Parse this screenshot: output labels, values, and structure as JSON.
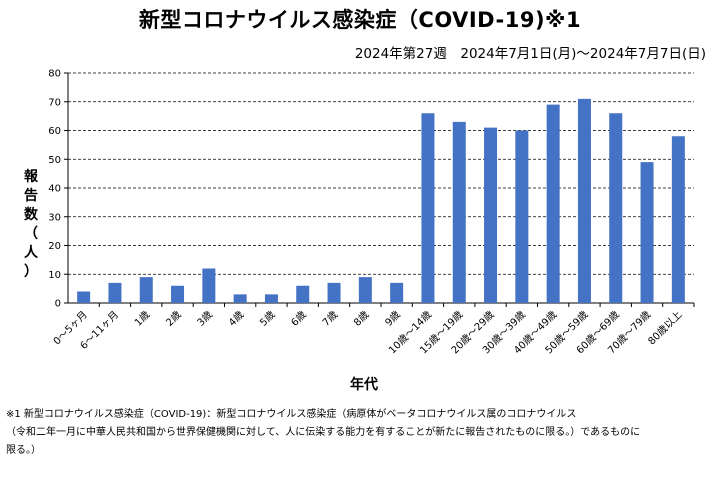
{
  "page": {
    "title": "新型コロナウイルス感染症（COVID-19)※1",
    "subtitle": "2024年第27週　2024年7月1日(月)～2024年7月7日(日)",
    "footnote_line1": "※1 新型コロナウイルス感染症（COVID-19)：新型コロナウイルス感染症（病原体がベータコロナウイルス属のコロナウイルス",
    "footnote_line2": "（令和二年一月に中華人民共和国から世界保健機関に対して、人に伝染する能力を有することが新たに報告されたものに限る。）であるものに",
    "footnote_line3": "限る。）"
  },
  "chart_data": {
    "type": "bar",
    "title": "新型コロナウイルス感染症（COVID-19)※1",
    "subtitle": "2024年第27週　2024年7月1日(月)～2024年7月7日(日)",
    "xlabel": "年代",
    "ylabel": "報告数（人）",
    "ylabel_chars": [
      "報",
      "告",
      "数",
      "（",
      "人",
      "）"
    ],
    "ylim": [
      0,
      80
    ],
    "yticks": [
      0,
      10,
      20,
      30,
      40,
      50,
      60,
      70,
      80
    ],
    "grid": "horizontal-dashed",
    "bar_color": "#4472c4",
    "categories": [
      "0～5ヶ月",
      "6～11ヶ月",
      "1歳",
      "2歳",
      "3歳",
      "4歳",
      "5歳",
      "6歳",
      "7歳",
      "8歳",
      "9歳",
      "10歳～14歳",
      "15歳～19歳",
      "20歳～29歳",
      "30歳～39歳",
      "40歳～49歳",
      "50歳～59歳",
      "60歳～69歳",
      "70歳～79歳",
      "80歳以上"
    ],
    "values": [
      4,
      7,
      9,
      6,
      12,
      3,
      3,
      6,
      7,
      9,
      7,
      66,
      63,
      61,
      60,
      69,
      71,
      66,
      49,
      58
    ]
  }
}
